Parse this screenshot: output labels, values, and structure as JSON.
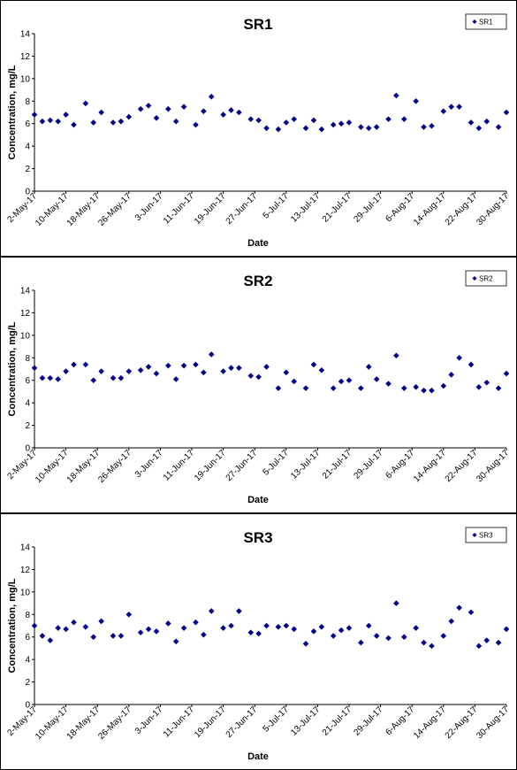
{
  "chart_data": [
    {
      "type": "scatter",
      "title": "SR1",
      "xlabel": "Date",
      "ylabel": "Concentration, mg/L",
      "ylim": [
        0,
        14
      ],
      "yticks": [
        0,
        2,
        4,
        6,
        8,
        10,
        12,
        14
      ],
      "xlim": [
        "2017-05-02",
        "2017-08-30"
      ],
      "xtick_labels": [
        "2-May-17",
        "10-May-17",
        "18-May-17",
        "26-May-17",
        "3-Jun-17",
        "11-Jun-17",
        "19-Jun-17",
        "27-Jun-17",
        "5-Jul-17",
        "13-Jul-17",
        "21-Jul-17",
        "29-Jul-17",
        "6-Aug-17",
        "14-Aug-17",
        "22-Aug-17",
        "30-Aug-17"
      ],
      "grid": false,
      "legend_position": "top-right",
      "color": "#00008B",
      "series": [
        {
          "name": "SR1",
          "x": [
            "2017-05-02",
            "2017-05-04",
            "2017-05-06",
            "2017-05-08",
            "2017-05-10",
            "2017-05-12",
            "2017-05-15",
            "2017-05-17",
            "2017-05-19",
            "2017-05-22",
            "2017-05-24",
            "2017-05-26",
            "2017-05-29",
            "2017-05-31",
            "2017-06-02",
            "2017-06-05",
            "2017-06-07",
            "2017-06-09",
            "2017-06-12",
            "2017-06-14",
            "2017-06-16",
            "2017-06-19",
            "2017-06-21",
            "2017-06-23",
            "2017-06-26",
            "2017-06-28",
            "2017-06-30",
            "2017-07-03",
            "2017-07-05",
            "2017-07-07",
            "2017-07-10",
            "2017-07-12",
            "2017-07-14",
            "2017-07-17",
            "2017-07-19",
            "2017-07-21",
            "2017-07-24",
            "2017-07-26",
            "2017-07-28",
            "2017-07-31",
            "2017-08-02",
            "2017-08-04",
            "2017-08-07",
            "2017-08-09",
            "2017-08-11",
            "2017-08-14",
            "2017-08-16",
            "2017-08-18",
            "2017-08-21",
            "2017-08-23",
            "2017-08-25",
            "2017-08-28",
            "2017-08-30"
          ],
          "y": [
            6.8,
            6.2,
            6.3,
            6.2,
            6.8,
            5.9,
            7.8,
            6.1,
            7.0,
            6.1,
            6.2,
            6.6,
            7.3,
            7.6,
            6.5,
            7.3,
            6.2,
            7.5,
            5.9,
            7.1,
            8.4,
            6.8,
            7.2,
            7.0,
            6.4,
            6.3,
            5.6,
            5.5,
            6.1,
            6.4,
            5.6,
            6.3,
            5.5,
            5.9,
            6.0,
            6.1,
            5.7,
            5.6,
            5.7,
            6.4,
            8.5,
            6.4,
            8.0,
            5.7,
            5.8,
            7.1,
            7.5,
            7.5,
            6.1,
            5.6,
            6.2,
            5.7,
            7.0
          ]
        }
      ]
    },
    {
      "type": "scatter",
      "title": "SR2",
      "xlabel": "Date",
      "ylabel": "Concentration, mg/L",
      "ylim": [
        0,
        14
      ],
      "yticks": [
        0,
        2,
        4,
        6,
        8,
        10,
        12,
        14
      ],
      "xlim": [
        "2017-05-02",
        "2017-08-30"
      ],
      "xtick_labels": [
        "2-May-17",
        "10-May-17",
        "18-May-17",
        "26-May-17",
        "3-Jun-17",
        "11-Jun-17",
        "19-Jun-17",
        "27-Jun-17",
        "5-Jul-17",
        "13-Jul-17",
        "21-Jul-17",
        "29-Jul-17",
        "6-Aug-17",
        "14-Aug-17",
        "22-Aug-17",
        "30-Aug-17"
      ],
      "grid": false,
      "legend_position": "top-right",
      "color": "#00008B",
      "series": [
        {
          "name": "SR2",
          "x": [
            "2017-05-02",
            "2017-05-04",
            "2017-05-06",
            "2017-05-08",
            "2017-05-10",
            "2017-05-12",
            "2017-05-15",
            "2017-05-17",
            "2017-05-19",
            "2017-05-22",
            "2017-05-24",
            "2017-05-26",
            "2017-05-29",
            "2017-05-31",
            "2017-06-02",
            "2017-06-05",
            "2017-06-07",
            "2017-06-09",
            "2017-06-12",
            "2017-06-14",
            "2017-06-16",
            "2017-06-19",
            "2017-06-21",
            "2017-06-23",
            "2017-06-26",
            "2017-06-28",
            "2017-06-30",
            "2017-07-03",
            "2017-07-05",
            "2017-07-07",
            "2017-07-10",
            "2017-07-12",
            "2017-07-14",
            "2017-07-17",
            "2017-07-19",
            "2017-07-21",
            "2017-07-24",
            "2017-07-26",
            "2017-07-28",
            "2017-07-31",
            "2017-08-02",
            "2017-08-04",
            "2017-08-07",
            "2017-08-09",
            "2017-08-11",
            "2017-08-14",
            "2017-08-16",
            "2017-08-18",
            "2017-08-21",
            "2017-08-23",
            "2017-08-25",
            "2017-08-28",
            "2017-08-30"
          ],
          "y": [
            7.1,
            6.2,
            6.2,
            6.1,
            6.8,
            7.4,
            7.4,
            6.0,
            6.8,
            6.2,
            6.2,
            6.8,
            6.9,
            7.2,
            6.6,
            7.3,
            6.1,
            7.3,
            7.4,
            6.7,
            8.3,
            6.8,
            7.1,
            7.1,
            6.4,
            6.3,
            7.2,
            5.3,
            6.7,
            5.9,
            5.3,
            7.4,
            6.9,
            5.3,
            5.9,
            6.0,
            5.3,
            7.2,
            6.1,
            5.7,
            8.2,
            5.3,
            5.4,
            5.1,
            5.1,
            5.5,
            6.5,
            8.0,
            7.4,
            5.4,
            5.8,
            5.3,
            6.6
          ]
        }
      ]
    },
    {
      "type": "scatter",
      "title": "SR3",
      "xlabel": "Date",
      "ylabel": "Concentration, mg/L",
      "ylim": [
        0,
        14
      ],
      "yticks": [
        0,
        2,
        4,
        6,
        8,
        10,
        12,
        14
      ],
      "xlim": [
        "2017-05-02",
        "2017-08-30"
      ],
      "xtick_labels": [
        "2-May-17",
        "10-May-17",
        "18-May-17",
        "26-May-17",
        "3-Jun-17",
        "11-Jun-17",
        "19-Jun-17",
        "27-Jun-17",
        "5-Jul-17",
        "13-Jul-17",
        "21-Jul-17",
        "29-Jul-17",
        "6-Aug-17",
        "14-Aug-17",
        "22-Aug-17",
        "30-Aug-17"
      ],
      "grid": false,
      "legend_position": "top-right",
      "color": "#00008B",
      "series": [
        {
          "name": "SR3",
          "x": [
            "2017-05-02",
            "2017-05-04",
            "2017-05-06",
            "2017-05-08",
            "2017-05-10",
            "2017-05-12",
            "2017-05-15",
            "2017-05-17",
            "2017-05-19",
            "2017-05-22",
            "2017-05-24",
            "2017-05-26",
            "2017-05-29",
            "2017-05-31",
            "2017-06-02",
            "2017-06-05",
            "2017-06-07",
            "2017-06-09",
            "2017-06-12",
            "2017-06-14",
            "2017-06-16",
            "2017-06-19",
            "2017-06-21",
            "2017-06-23",
            "2017-06-26",
            "2017-06-28",
            "2017-06-30",
            "2017-07-03",
            "2017-07-05",
            "2017-07-07",
            "2017-07-10",
            "2017-07-12",
            "2017-07-14",
            "2017-07-17",
            "2017-07-19",
            "2017-07-21",
            "2017-07-24",
            "2017-07-26",
            "2017-07-28",
            "2017-07-31",
            "2017-08-02",
            "2017-08-04",
            "2017-08-07",
            "2017-08-09",
            "2017-08-11",
            "2017-08-14",
            "2017-08-16",
            "2017-08-18",
            "2017-08-21",
            "2017-08-23",
            "2017-08-25",
            "2017-08-28",
            "2017-08-30"
          ],
          "y": [
            7.0,
            6.1,
            5.7,
            6.8,
            6.7,
            7.3,
            6.9,
            6.0,
            7.4,
            6.1,
            6.1,
            8.0,
            6.4,
            6.7,
            6.5,
            7.2,
            5.6,
            6.8,
            7.3,
            6.2,
            8.3,
            6.8,
            7.0,
            8.3,
            6.4,
            6.3,
            7.0,
            6.9,
            7.0,
            6.7,
            5.4,
            6.5,
            6.9,
            6.1,
            6.6,
            6.8,
            5.5,
            7.0,
            6.1,
            5.9,
            9.0,
            6.0,
            6.8,
            5.5,
            5.2,
            6.1,
            7.4,
            8.6,
            8.2,
            5.2,
            5.7,
            5.5,
            6.7
          ]
        }
      ]
    }
  ]
}
